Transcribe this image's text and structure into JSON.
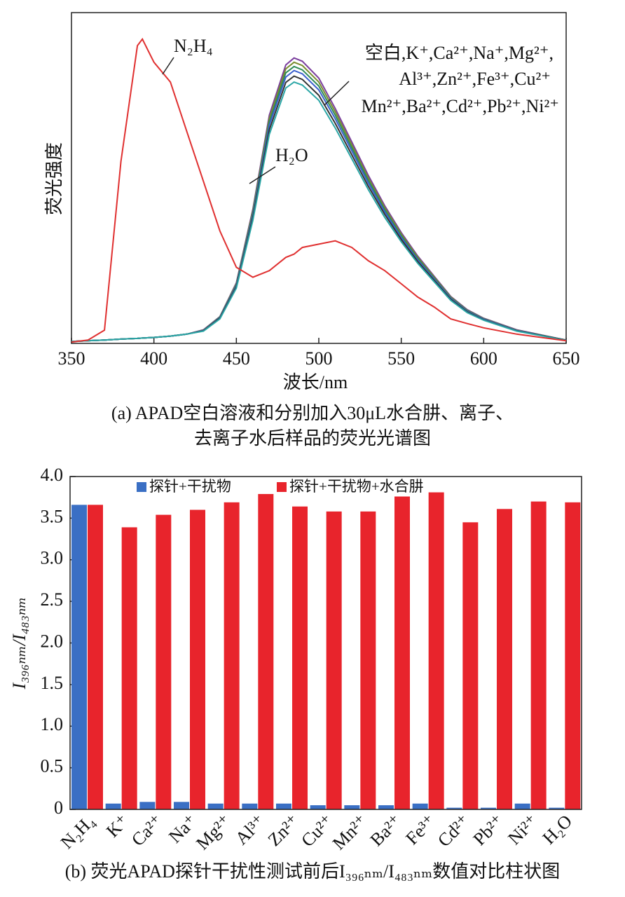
{
  "chart_data": [
    {
      "type": "line",
      "ylabel": "荧光强度",
      "xlabel": "波长/nm",
      "caption": [
        "(a) APAD空白溶液和分别加入30μL水合肼、离子、",
        "去离子水后样品的荧光光谱图"
      ],
      "annotations": [
        "N₂H₄",
        "空白,K⁺,Ca²⁺,Na⁺,Mg²⁺,",
        "Al³⁺,Zn²⁺,Fe³⁺,Cu²⁺",
        "Mn²⁺,Ba²⁺,Cd²⁺,Pb²⁺,Ni²⁺",
        "H₂O"
      ],
      "xlim": [
        350,
        650
      ],
      "xticks": [
        350,
        400,
        450,
        500,
        550,
        600,
        650
      ],
      "ylim": [
        0,
        100
      ],
      "x": [
        350,
        360,
        370,
        380,
        390,
        393,
        400,
        410,
        420,
        430,
        440,
        450,
        460,
        470,
        480,
        485,
        490,
        500,
        510,
        520,
        530,
        540,
        550,
        560,
        570,
        580,
        590,
        600,
        620,
        650
      ],
      "series": [
        {
          "color": "#7b3f9e",
          "values": [
            0.6,
            0.8,
            1,
            1.3,
            1.5,
            1.6,
            1.8,
            2.2,
            2.8,
            4.1,
            8.1,
            18.3,
            40.6,
            69,
            84.2,
            86.3,
            85.3,
            80.2,
            71,
            60.9,
            50.8,
            41.6,
            33.5,
            26.4,
            20.3,
            14.2,
            10.2,
            7.6,
            4.1,
            1
          ]
        },
        {
          "color": "#7a8c2e",
          "values": [
            0.6,
            0.8,
            1,
            1.3,
            1.5,
            1.6,
            1.8,
            2.2,
            2.8,
            4,
            8,
            18,
            40,
            68,
            83,
            85,
            84,
            79,
            70,
            60,
            50,
            41,
            33,
            26,
            20,
            14,
            10,
            7.5,
            4,
            1
          ]
        },
        {
          "color": "#2e8b57",
          "values": [
            0.6,
            0.8,
            1,
            1.3,
            1.5,
            1.6,
            1.8,
            2.2,
            2.8,
            3.9,
            7.9,
            17.7,
            39.4,
            67,
            81.8,
            83.7,
            82.7,
            77.8,
            69,
            59.1,
            49.3,
            40.4,
            32.5,
            25.6,
            19.7,
            13.8,
            9.9,
            7.4,
            3.9,
            1
          ]
        },
        {
          "color": "#3a5fcd",
          "values": [
            0.6,
            0.8,
            1,
            1.3,
            1.5,
            1.6,
            1.8,
            2.2,
            2.8,
            3.9,
            7.8,
            17.5,
            38.8,
            66,
            80.5,
            82.5,
            81.5,
            76.6,
            67.9,
            58.2,
            48.5,
            39.8,
            32,
            25.2,
            19.4,
            13.6,
            9.7,
            7.3,
            3.9,
            1
          ]
        },
        {
          "color": "#333333",
          "values": [
            0.6,
            0.8,
            1,
            1.3,
            1.5,
            1.6,
            1.8,
            2.2,
            2.8,
            3.8,
            7.6,
            17.1,
            38,
            64.6,
            78.9,
            80.8,
            79.8,
            75,
            66.5,
            57,
            47.5,
            39,
            31.4,
            24.7,
            19,
            13.3,
            9.5,
            7.1,
            3.8,
            1
          ]
        },
        {
          "color": "#2aa6a6",
          "values": [
            0.6,
            0.8,
            1,
            1.3,
            1.5,
            1.6,
            1.8,
            2.2,
            2.8,
            3.7,
            7.4,
            16.7,
            37.2,
            63.2,
            77.2,
            79,
            78.1,
            73.5,
            65.1,
            55.8,
            46.5,
            38.1,
            30.7,
            24.2,
            18.6,
            13,
            9.3,
            7,
            3.7,
            0.9
          ]
        },
        {
          "color": "#e03030",
          "values": [
            0.4,
            1,
            4,
            55,
            90,
            92,
            85,
            79,
            64,
            49,
            34,
            23,
            20,
            22,
            26,
            27,
            29,
            30,
            31,
            29,
            25,
            22,
            18,
            14,
            11,
            7.4,
            6,
            4.7,
            2.8,
            0.8
          ]
        }
      ]
    },
    {
      "type": "bar",
      "ylabel": "I₃₉₆ₙₘ/I₄₈₃ₙₘ",
      "caption": [
        "(b) 荧光APAD探针干扰性测试前后I₃₉₆ₙₘ/I₄₈₃ₙₘ数值对比柱状图"
      ],
      "ylim": [
        0,
        4
      ],
      "yticks": [
        0,
        0.5,
        {
          "value": 1,
          "label": "1.0"
        },
        1.5,
        {
          "value": 2,
          "label": "2.0"
        },
        2.5,
        {
          "value": 3,
          "label": "3.0"
        },
        3.5,
        {
          "value": 4,
          "label": "4.0"
        }
      ],
      "categories": [
        "N₂H₄",
        "K⁺",
        "Ca²⁺",
        "Na⁺",
        "Mg²⁺",
        "Al³⁺",
        "Zn²⁺",
        "Cu²⁺",
        "Mn²⁺",
        "Ba²⁺",
        "Fe³⁺",
        "Cd²⁺",
        "Pb²⁺",
        "Ni²⁺",
        "H₂O"
      ],
      "series": [
        {
          "name": "探针+干扰物",
          "color": "#3a6fc4",
          "values": [
            3.66,
            0.07,
            0.09,
            0.09,
            0.07,
            0.07,
            0.07,
            0.05,
            0.05,
            0.05,
            0.07,
            0.02,
            0.02,
            0.07,
            0.02
          ]
        },
        {
          "name": "探针+干扰物+水合肼",
          "color": "#e8242c",
          "values": [
            3.66,
            3.39,
            3.54,
            3.6,
            3.69,
            3.79,
            3.64,
            3.58,
            3.58,
            3.76,
            3.81,
            3.45,
            3.61,
            3.7,
            3.69
          ]
        }
      ]
    }
  ]
}
